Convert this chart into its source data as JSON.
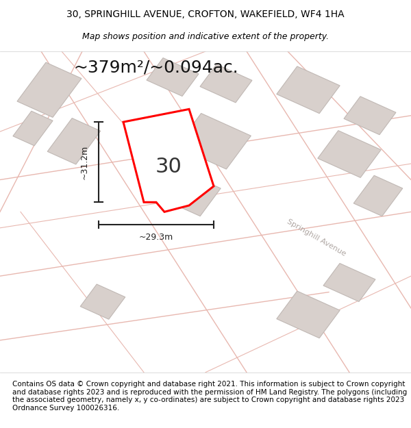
{
  "title": "30, SPRINGHILL AVENUE, CROFTON, WAKEFIELD, WF4 1HA",
  "subtitle": "Map shows position and indicative extent of the property.",
  "area_label": "~379m²/~0.094ac.",
  "number_label": "30",
  "width_label": "~29.3m",
  "height_label": "~31.2m",
  "footer": "Contains OS data © Crown copyright and database right 2021. This information is subject to Crown copyright and database rights 2023 and is reproduced with the permission of HM Land Registry. The polygons (including the associated geometry, namely x, y co-ordinates) are subject to Crown copyright and database rights 2023 Ordnance Survey 100026316.",
  "bg_color": "#f5f0ee",
  "map_bg": "#f5f0ee",
  "road_color": "#e8d8d0",
  "building_color": "#d8d0cc",
  "building_edge": "#c0b8b4",
  "plot_color": "red",
  "plot_fill": "#ffffff",
  "road_label_color": "#b0a8a4",
  "dim_color": "#222222",
  "title_fontsize": 10,
  "subtitle_fontsize": 9,
  "area_fontsize": 18,
  "number_fontsize": 22,
  "footer_fontsize": 7.5
}
